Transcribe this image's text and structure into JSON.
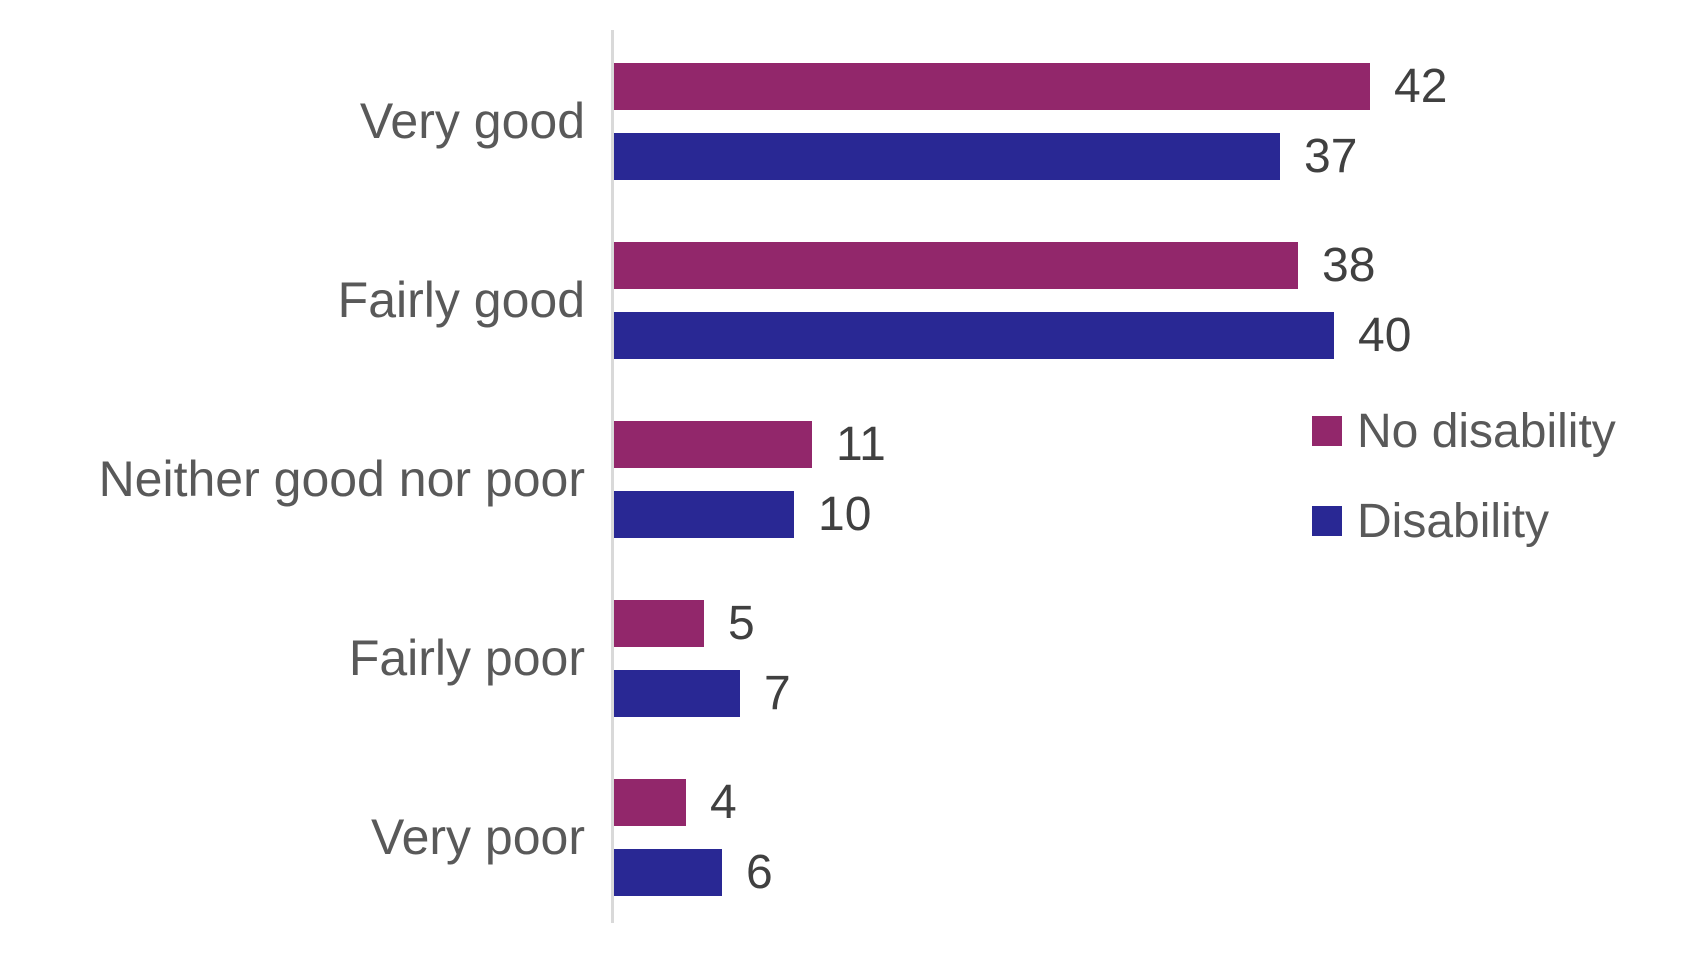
{
  "chart_data": {
    "type": "bar",
    "orientation": "horizontal",
    "title": "",
    "categories": [
      "Very good",
      "Fairly good",
      "Neither good nor poor",
      "Fairly poor",
      "Very poor"
    ],
    "series": [
      {
        "name": "No disability",
        "color": "#92276B",
        "values": [
          42,
          38,
          11,
          5,
          4
        ]
      },
      {
        "name": "Disability",
        "color": "#292894",
        "values": [
          37,
          40,
          10,
          7,
          6
        ]
      }
    ],
    "xlim": [
      0,
      42
    ],
    "value_labels": true,
    "grid": false,
    "legend_position": "middle-right",
    "axis_line_color": "#D9D9D9",
    "category_label_color": "#595959",
    "value_label_color": "#404040",
    "background_color": "#FFFFFF"
  }
}
